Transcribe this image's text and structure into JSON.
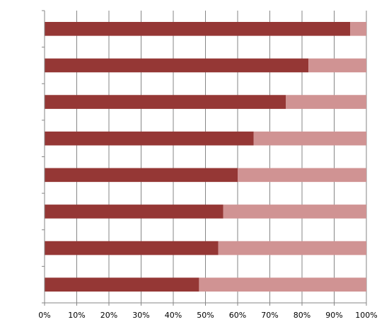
{
  "chart_data": {
    "type": "bar",
    "orientation": "horizontal",
    "stacked": true,
    "percent_scale": true,
    "title": "",
    "xlabel": "",
    "ylabel": "",
    "xlim": [
      0,
      100
    ],
    "x_ticks": [
      "0%",
      "10%",
      "20%",
      "30%",
      "40%",
      "50%",
      "60%",
      "70%",
      "80%",
      "90%",
      "100%"
    ],
    "x_tick_values": [
      0,
      10,
      20,
      30,
      40,
      50,
      60,
      70,
      80,
      90,
      100
    ],
    "grid": "vertical",
    "legend": "none",
    "categories": [
      "",
      "",
      "",
      "",
      "",
      "",
      "",
      ""
    ],
    "series": [
      {
        "values": [
          95,
          82,
          75,
          65,
          60,
          55.5,
          54,
          48
        ],
        "color": "#953735"
      },
      {
        "values": [
          5,
          18,
          25,
          35,
          40,
          44.5,
          46,
          52
        ],
        "color": "#D09393"
      }
    ]
  }
}
